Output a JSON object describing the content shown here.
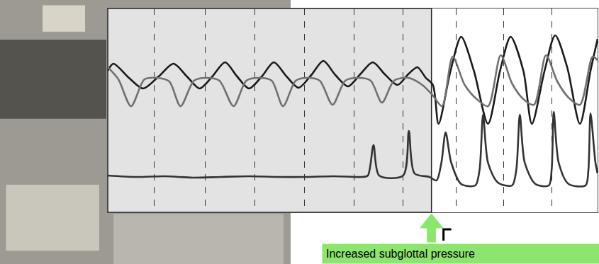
{
  "chart_data": {
    "type": "line",
    "xlim": [
      0,
      693
    ],
    "ylim": [
      0,
      288
    ],
    "xticks": [
      66,
      138,
      208,
      278,
      348,
      418,
      493,
      560,
      628
    ],
    "yticks": [],
    "grid": true,
    "tick_labels": false,
    "series": [
      {
        "color": "#1a1a1a",
        "x": [
          0,
          8,
          30,
          50,
          72,
          93,
          112,
          130,
          148,
          166,
          183,
          200,
          218,
          235,
          253,
          270,
          288,
          305,
          322,
          340,
          358,
          375,
          392,
          410,
          425,
          438,
          450,
          460,
          468,
          485,
          500,
          518,
          538,
          555,
          570,
          588,
          600,
          618,
          633,
          650,
          668,
          683,
          693
        ],
        "values": [
          200,
          210,
          190,
          175,
          192,
          210,
          192,
          175,
          192,
          212,
          192,
          175,
          192,
          212,
          192,
          176,
          194,
          214,
          194,
          178,
          196,
          212,
          195,
          180,
          195,
          205,
          190,
          180,
          125,
          200,
          248,
          200,
          125,
          200,
          248,
          200,
          125,
          200,
          250,
          205,
          125,
          200,
          245
        ]
      },
      {
        "color": "#707070",
        "x": [
          0,
          15,
          33,
          52,
          70,
          87,
          103,
          122,
          140,
          158,
          178,
          196,
          214,
          232,
          248,
          266,
          283,
          300,
          318,
          336,
          354,
          372,
          388,
          405,
          425,
          445,
          460,
          473,
          488,
          505,
          522,
          538,
          556,
          572,
          588,
          603,
          620,
          636,
          652,
          668,
          686,
          693
        ],
        "values": [
          205,
          188,
          150,
          188,
          190,
          185,
          150,
          186,
          190,
          186,
          150,
          186,
          190,
          186,
          150,
          186,
          190,
          186,
          152,
          186,
          190,
          186,
          155,
          186,
          190,
          180,
          165,
          150,
          220,
          180,
          160,
          150,
          222,
          182,
          160,
          152,
          222,
          185,
          162,
          152,
          220,
          215
        ]
      },
      {
        "color": "#333333",
        "x": [
          0,
          40,
          80,
          120,
          160,
          200,
          240,
          280,
          320,
          360,
          368,
          376,
          384,
          418,
          426,
          434,
          455,
          465,
          472,
          478,
          486,
          500,
          520,
          526,
          531,
          538,
          552,
          572,
          578,
          583,
          590,
          605,
          624,
          628,
          631,
          638,
          652,
          676,
          680,
          683,
          690,
          693
        ],
        "values": [
          52,
          50,
          51,
          49,
          50,
          51,
          50,
          50,
          51,
          50,
          52,
          95,
          52,
          52,
          115,
          55,
          50,
          45,
          70,
          113,
          70,
          40,
          38,
          60,
          138,
          70,
          42,
          38,
          60,
          138,
          70,
          40,
          38,
          60,
          142,
          70,
          40,
          38,
          60,
          140,
          70,
          55
        ]
      }
    ],
    "annotations": [
      {
        "text": "Increased subglottal pressure",
        "x": 458
      }
    ]
  }
}
